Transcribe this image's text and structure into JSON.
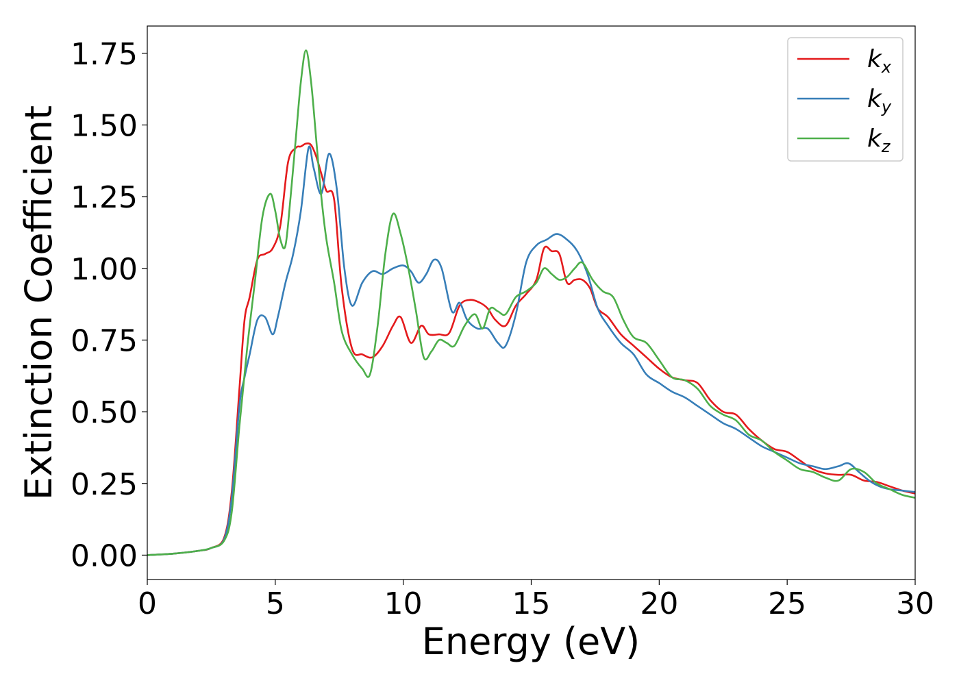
{
  "chart_data": {
    "type": "line",
    "title": "",
    "xlabel": "Energy (eV)",
    "ylabel": "Extinction Coefficient",
    "xlim": [
      0,
      30
    ],
    "ylim": [
      -0.085,
      1.845
    ],
    "xticks": [
      0,
      5,
      10,
      15,
      20,
      25,
      30
    ],
    "xtick_labels": [
      "0",
      "5",
      "10",
      "15",
      "20",
      "25",
      "30"
    ],
    "yticks": [
      0,
      0.25,
      0.5,
      0.75,
      1.0,
      1.25,
      1.5,
      1.75
    ],
    "ytick_labels": [
      "0.00",
      "0.25",
      "0.50",
      "0.75",
      "1.00",
      "1.25",
      "1.50",
      "1.75"
    ],
    "grid": false,
    "legend_position": "top-right",
    "series": [
      {
        "name": "k_x",
        "label_main": "k",
        "label_sub": "x",
        "color": "#e41a1c",
        "x": [
          0,
          1,
          2,
          2.5,
          3,
          3.3,
          3.6,
          3.8,
          4.0,
          4.3,
          4.6,
          4.9,
          5.2,
          5.5,
          5.8,
          6.0,
          6.2,
          6.4,
          6.6,
          6.8,
          7.0,
          7.3,
          7.6,
          8.0,
          8.4,
          8.8,
          9.2,
          9.6,
          9.9,
          10.3,
          10.7,
          11.0,
          11.4,
          11.8,
          12.2,
          12.6,
          13.0,
          13.3,
          13.6,
          14.0,
          14.4,
          14.8,
          15.2,
          15.5,
          15.8,
          16.1,
          16.4,
          16.7,
          17.0,
          17.3,
          17.6,
          18.0,
          18.5,
          19.0,
          19.5,
          20.0,
          20.5,
          21.0,
          21.5,
          22.0,
          22.5,
          23.0,
          23.5,
          24.0,
          24.5,
          25.0,
          25.5,
          26.0,
          26.5,
          27.0,
          27.5,
          28.0,
          28.5,
          29.0,
          29.5,
          30.0
        ],
        "y": [
          0.0,
          0.005,
          0.015,
          0.025,
          0.06,
          0.22,
          0.58,
          0.82,
          0.9,
          1.03,
          1.05,
          1.07,
          1.15,
          1.37,
          1.42,
          1.425,
          1.435,
          1.43,
          1.39,
          1.33,
          1.27,
          1.24,
          0.93,
          0.72,
          0.7,
          0.69,
          0.73,
          0.8,
          0.83,
          0.74,
          0.8,
          0.77,
          0.77,
          0.775,
          0.87,
          0.89,
          0.88,
          0.86,
          0.82,
          0.8,
          0.87,
          0.91,
          0.96,
          1.07,
          1.06,
          1.05,
          0.95,
          0.96,
          0.96,
          0.93,
          0.86,
          0.83,
          0.77,
          0.73,
          0.69,
          0.65,
          0.62,
          0.61,
          0.6,
          0.54,
          0.5,
          0.49,
          0.44,
          0.4,
          0.37,
          0.36,
          0.33,
          0.3,
          0.285,
          0.28,
          0.28,
          0.26,
          0.255,
          0.24,
          0.225,
          0.215
        ]
      },
      {
        "name": "k_y",
        "label_main": "k",
        "label_sub": "y",
        "color": "#377eb8",
        "x": [
          0,
          1,
          2,
          2.5,
          3,
          3.3,
          3.6,
          3.8,
          4.0,
          4.3,
          4.6,
          4.9,
          5.1,
          5.4,
          5.7,
          6.0,
          6.3,
          6.5,
          6.8,
          7.1,
          7.4,
          7.7,
          8.0,
          8.4,
          8.8,
          9.2,
          9.6,
          10.0,
          10.3,
          10.6,
          10.9,
          11.2,
          11.5,
          11.9,
          12.2,
          12.5,
          12.9,
          13.3,
          13.7,
          14.0,
          14.4,
          14.8,
          15.2,
          15.6,
          16.0,
          16.4,
          16.8,
          17.2,
          17.6,
          18.0,
          18.5,
          19.0,
          19.5,
          20.0,
          20.5,
          21.0,
          21.5,
          22.0,
          22.5,
          23.0,
          23.5,
          24.0,
          24.5,
          25.0,
          25.5,
          26.0,
          26.5,
          27.0,
          27.4,
          27.8,
          28.2,
          28.6,
          29.0,
          29.5,
          30.0
        ],
        "y": [
          0.0,
          0.005,
          0.015,
          0.025,
          0.055,
          0.2,
          0.52,
          0.62,
          0.7,
          0.82,
          0.83,
          0.77,
          0.83,
          0.95,
          1.05,
          1.2,
          1.42,
          1.35,
          1.26,
          1.4,
          1.28,
          1.0,
          0.87,
          0.95,
          0.99,
          0.98,
          1.0,
          1.01,
          0.99,
          0.95,
          0.98,
          1.03,
          1.0,
          0.85,
          0.88,
          0.82,
          0.79,
          0.79,
          0.74,
          0.73,
          0.84,
          1.02,
          1.08,
          1.1,
          1.12,
          1.1,
          1.06,
          0.98,
          0.86,
          0.8,
          0.74,
          0.7,
          0.63,
          0.6,
          0.57,
          0.55,
          0.52,
          0.49,
          0.46,
          0.44,
          0.41,
          0.38,
          0.36,
          0.34,
          0.32,
          0.31,
          0.3,
          0.31,
          0.32,
          0.29,
          0.26,
          0.24,
          0.23,
          0.225,
          0.22
        ]
      },
      {
        "name": "k_z",
        "label_main": "k",
        "label_sub": "z",
        "color": "#4daf4a",
        "x": [
          0,
          1,
          2,
          2.5,
          3,
          3.3,
          3.6,
          3.9,
          4.2,
          4.5,
          4.8,
          5.0,
          5.2,
          5.4,
          5.6,
          5.8,
          6.0,
          6.2,
          6.4,
          6.6,
          6.8,
          7.0,
          7.3,
          7.6,
          8.0,
          8.4,
          8.7,
          9.0,
          9.3,
          9.6,
          9.9,
          10.2,
          10.5,
          10.8,
          11.1,
          11.4,
          11.7,
          12.0,
          12.4,
          12.8,
          13.1,
          13.4,
          13.7,
          14.0,
          14.4,
          14.8,
          15.2,
          15.5,
          15.8,
          16.1,
          16.4,
          16.7,
          17.0,
          17.4,
          17.8,
          18.2,
          18.6,
          19.0,
          19.5,
          20.0,
          20.5,
          21.0,
          21.5,
          22.0,
          22.5,
          23.0,
          23.5,
          24.0,
          24.5,
          25.0,
          25.5,
          26.0,
          26.5,
          27.0,
          27.5,
          28.0,
          28.5,
          29.0,
          29.5,
          30.0
        ],
        "y": [
          0.0,
          0.005,
          0.015,
          0.025,
          0.05,
          0.15,
          0.45,
          0.72,
          0.95,
          1.18,
          1.26,
          1.2,
          1.1,
          1.08,
          1.25,
          1.45,
          1.65,
          1.76,
          1.65,
          1.45,
          1.25,
          1.1,
          0.95,
          0.78,
          0.7,
          0.65,
          0.63,
          0.8,
          1.05,
          1.19,
          1.12,
          1.0,
          0.85,
          0.69,
          0.71,
          0.75,
          0.74,
          0.73,
          0.8,
          0.84,
          0.79,
          0.86,
          0.85,
          0.84,
          0.9,
          0.92,
          0.95,
          1.0,
          0.98,
          0.96,
          0.97,
          1.0,
          1.02,
          0.96,
          0.92,
          0.9,
          0.82,
          0.76,
          0.74,
          0.68,
          0.62,
          0.61,
          0.58,
          0.52,
          0.49,
          0.47,
          0.42,
          0.4,
          0.36,
          0.33,
          0.3,
          0.29,
          0.27,
          0.26,
          0.3,
          0.29,
          0.25,
          0.23,
          0.21,
          0.2
        ]
      }
    ]
  }
}
